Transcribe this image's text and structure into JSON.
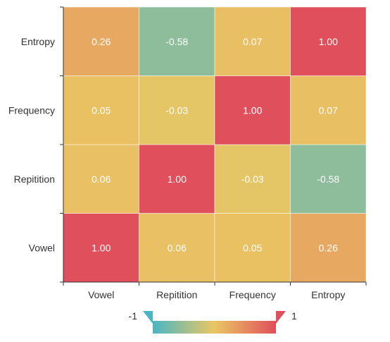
{
  "chart_data": {
    "type": "heatmap",
    "title": "",
    "x_categories": [
      "Vowel",
      "Repitition",
      "Frequency",
      "Entropy"
    ],
    "y_categories": [
      "Vowel",
      "Repitition",
      "Frequency",
      "Entropy"
    ],
    "values": [
      [
        1.0,
        0.06,
        0.05,
        0.26
      ],
      [
        0.06,
        1.0,
        -0.03,
        -0.58
      ],
      [
        0.05,
        -0.03,
        1.0,
        0.07
      ],
      [
        0.26,
        -0.58,
        0.07,
        1.0
      ]
    ],
    "value_labels": [
      [
        "1.00",
        "0.06",
        "0.05",
        "0.26"
      ],
      [
        "0.06",
        "1.00",
        "-0.03",
        "-0.58"
      ],
      [
        "0.05",
        "-0.03",
        "1.00",
        "0.07"
      ],
      [
        "0.26",
        "-0.58",
        "0.07",
        "1.00"
      ]
    ],
    "color_range": [
      -1,
      1
    ],
    "color_stops": [
      "#4ab5c4",
      "#eac763",
      "#df4f5c"
    ],
    "legend": {
      "min_label": "-1",
      "max_label": "1",
      "placement": "bottom-center"
    }
  }
}
